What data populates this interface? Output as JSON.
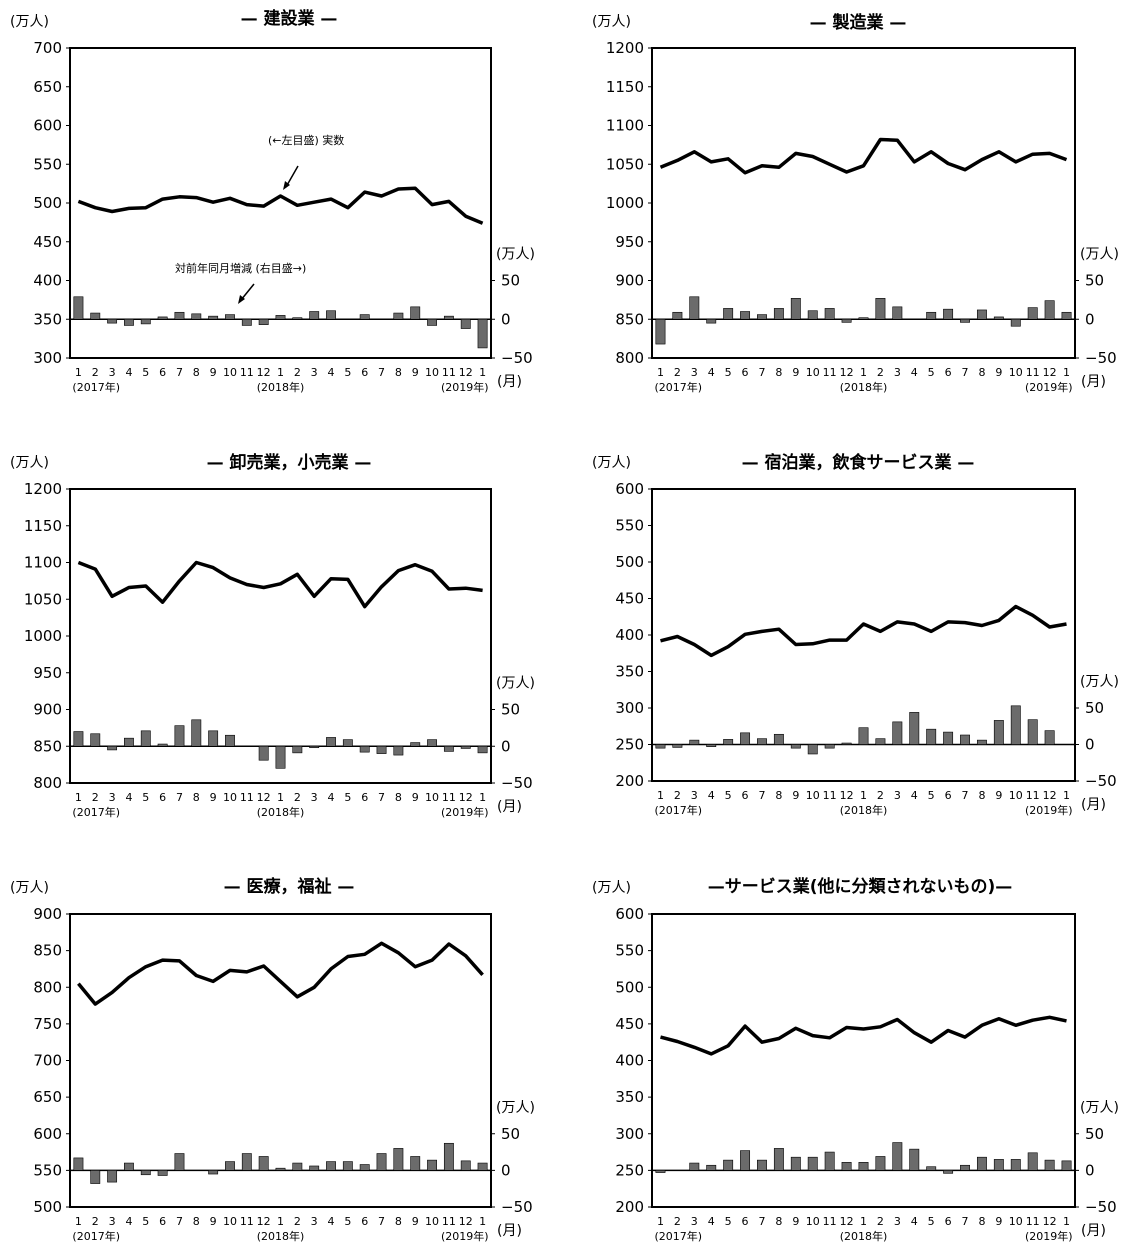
{
  "months": [
    "1",
    "2",
    "3",
    "4",
    "5",
    "6",
    "7",
    "8",
    "9",
    "10",
    "11",
    "12",
    "1",
    "2",
    "3",
    "4",
    "5",
    "6",
    "7",
    "8",
    "9",
    "10",
    "11",
    "12",
    "1"
  ],
  "year_labels": [
    "(2017年)",
    "(2018年)",
    "(2019年)"
  ],
  "month_unit": "(月)",
  "left_unit": "(万人)",
  "right_unit": "(万人)",
  "right_ticks": [
    "50",
    "0",
    "−50"
  ],
  "annotations": {
    "line_label": "(←左目盛) 実数",
    "bar_label": "対前年同月増減 (右目盛→)"
  },
  "chart_data": [
    {
      "type": "line+bar",
      "title": "— 建設業 —",
      "y_left_ticks": [
        "700",
        "650",
        "600",
        "550",
        "500",
        "450",
        "400",
        "350",
        "300"
      ],
      "ylim_left": [
        300,
        700
      ],
      "ylim_right": [
        -50,
        50
      ],
      "line": [
        502,
        494,
        489,
        493,
        494,
        505,
        508,
        507,
        501,
        506,
        498,
        496,
        509,
        497,
        501,
        505,
        494,
        514,
        509,
        518,
        519,
        498,
        502,
        483,
        474
      ],
      "bars": [
        29,
        8,
        -5,
        -8,
        -6,
        3,
        9,
        7,
        4,
        6,
        -8,
        -7,
        5,
        2,
        10,
        11,
        0,
        6,
        0,
        8,
        16,
        -8,
        4,
        -12,
        -37
      ]
    },
    {
      "type": "line+bar",
      "title": "— 製造業 —",
      "y_left_ticks": [
        "1200",
        "1150",
        "1100",
        "1050",
        "1000",
        "950",
        "900",
        "850",
        "800"
      ],
      "ylim_left": [
        800,
        1200
      ],
      "ylim_right": [
        -50,
        50
      ],
      "line": [
        1046,
        1055,
        1066,
        1053,
        1057,
        1039,
        1048,
        1046,
        1064,
        1060,
        1050,
        1040,
        1048,
        1082,
        1081,
        1053,
        1066,
        1051,
        1043,
        1056,
        1066,
        1053,
        1063,
        1064,
        1056
      ],
      "bars": [
        -32,
        9,
        29,
        -5,
        14,
        10,
        6,
        14,
        27,
        11,
        14,
        -4,
        2,
        27,
        16,
        0,
        9,
        13,
        -4,
        12,
        3,
        -9,
        15,
        24,
        9
      ]
    },
    {
      "type": "line+bar",
      "title": "— 卸売業，小売業 —",
      "y_left_ticks": [
        "1200",
        "1150",
        "1100",
        "1050",
        "1000",
        "950",
        "900",
        "850",
        "800"
      ],
      "ylim_left": [
        800,
        1200
      ],
      "ylim_right": [
        -50,
        50
      ],
      "line": [
        1100,
        1091,
        1054,
        1066,
        1068,
        1046,
        1075,
        1100,
        1093,
        1079,
        1070,
        1066,
        1071,
        1084,
        1054,
        1078,
        1077,
        1040,
        1067,
        1089,
        1097,
        1088,
        1064,
        1065,
        1062
      ],
      "bars": [
        20,
        17,
        -5,
        11,
        21,
        3,
        28,
        36,
        21,
        15,
        0,
        -19,
        -30,
        -9,
        -2,
        12,
        9,
        -8,
        -10,
        -12,
        5,
        9,
        -7,
        -3,
        -9
      ]
    },
    {
      "type": "line+bar",
      "title": "— 宿泊業，飲食サービス業 —",
      "y_left_ticks": [
        "600",
        "550",
        "500",
        "450",
        "400",
        "350",
        "300",
        "250",
        "200"
      ],
      "ylim_left": [
        200,
        600
      ],
      "ylim_right": [
        -50,
        50
      ],
      "line": [
        392,
        398,
        387,
        372,
        384,
        401,
        405,
        408,
        387,
        388,
        393,
        393,
        415,
        405,
        418,
        415,
        405,
        418,
        417,
        413,
        420,
        439,
        427,
        411,
        415
      ],
      "bars": [
        -5,
        -4,
        6,
        -3,
        7,
        16,
        8,
        14,
        -5,
        -13,
        -5,
        2,
        23,
        8,
        31,
        44,
        21,
        17,
        13,
        6,
        33,
        53,
        34,
        19,
        0
      ]
    },
    {
      "type": "line+bar",
      "title": "— 医療，福祉 —",
      "y_left_ticks": [
        "900",
        "850",
        "800",
        "750",
        "700",
        "650",
        "600",
        "550",
        "500"
      ],
      "ylim_left": [
        500,
        900
      ],
      "ylim_right": [
        -50,
        50
      ],
      "line": [
        805,
        777,
        793,
        813,
        828,
        837,
        836,
        816,
        808,
        823,
        821,
        829,
        808,
        787,
        800,
        825,
        842,
        845,
        860,
        847,
        828,
        837,
        859,
        843,
        817
      ],
      "bars": [
        17,
        -18,
        -16,
        10,
        -6,
        -7,
        23,
        0,
        -5,
        12,
        23,
        19,
        3,
        10,
        6,
        12,
        12,
        8,
        23,
        30,
        19,
        14,
        37,
        13,
        10
      ]
    },
    {
      "type": "line+bar",
      "title": "—サービス業(他に分類されないもの)—",
      "y_left_ticks": [
        "600",
        "550",
        "500",
        "450",
        "400",
        "350",
        "300",
        "250",
        "200"
      ],
      "ylim_left": [
        200,
        600
      ],
      "ylim_right": [
        -50,
        50
      ],
      "line": [
        432,
        426,
        418,
        409,
        420,
        447,
        425,
        430,
        444,
        434,
        431,
        445,
        443,
        446,
        456,
        438,
        425,
        441,
        432,
        448,
        457,
        448,
        455,
        459,
        454
      ],
      "bars": [
        -3,
        0,
        10,
        7,
        14,
        27,
        14,
        30,
        18,
        18,
        25,
        11,
        11,
        19,
        38,
        29,
        5,
        -4,
        7,
        18,
        15,
        15,
        24,
        14,
        13
      ]
    }
  ]
}
